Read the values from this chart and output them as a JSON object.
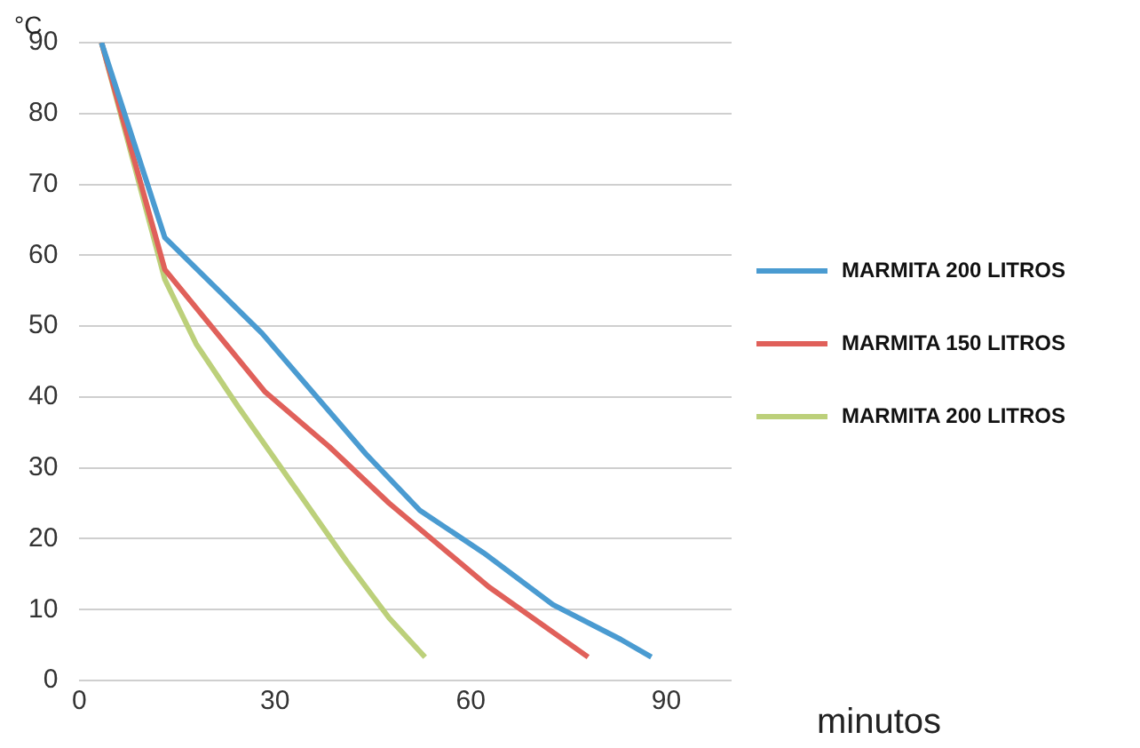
{
  "chart_data": {
    "type": "line",
    "xlabel": "minutos",
    "ylabel": "°C",
    "xlim": [
      0,
      100
    ],
    "xticks": [
      0,
      30,
      60,
      90
    ],
    "ylim": [
      0,
      90
    ],
    "yticks": [
      0,
      10,
      20,
      30,
      40,
      50,
      60,
      70,
      80,
      90
    ],
    "grid": "y",
    "legend": "right",
    "marker": "none",
    "line_style": "solid",
    "series": [
      {
        "name": "MARMITA 200 LITROS",
        "color": "#4a9bd1",
        "x": [
          3.4,
          13.1,
          28,
          43.9,
          52.2,
          62,
          72.6,
          83,
          87.7
        ],
        "values": [
          90,
          62.5,
          49,
          32,
          24,
          18,
          10.7,
          5.8,
          3.3
        ]
      },
      {
        "name": "MARMITA 150 LITROS",
        "color": "#e0605a",
        "x": [
          3.4,
          13.1,
          28.5,
          38.3,
          47.5,
          62.8,
          78
        ],
        "values": [
          90,
          58,
          40.7,
          33,
          25,
          13.2,
          3.3
        ]
      },
      {
        "name": "MARMITA 200 LITROS",
        "color": "#bcd07a",
        "x": [
          3.4,
          13.1,
          17.9,
          24.3,
          32.7,
          41,
          47.5,
          53
        ],
        "values": [
          90,
          56.6,
          47.5,
          38.7,
          27.7,
          16.8,
          8.8,
          3.3
        ]
      }
    ]
  }
}
